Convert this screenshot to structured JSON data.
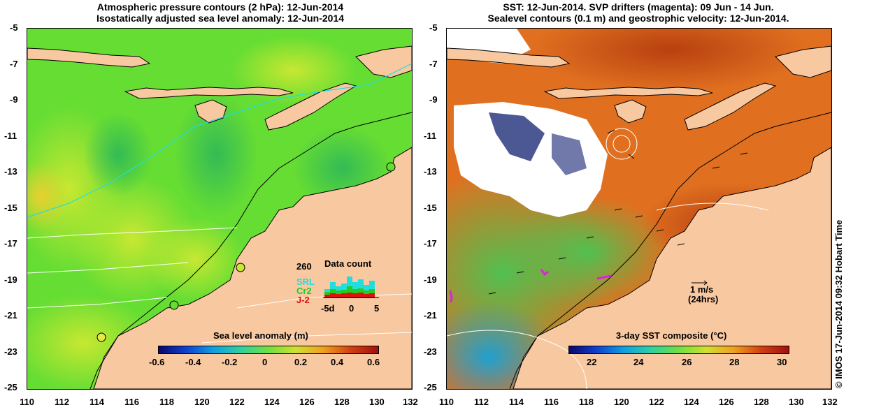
{
  "left_panel": {
    "title_line1": "Atmospheric pressure contours (2 hPa): 12-Jun-2014",
    "title_line2": "Isostatically adjusted sea level anomaly: 12-Jun-2014",
    "colorbar_title": "Sea level anomaly (m)",
    "colorbar_ticks": [
      "-0.6",
      "-0.4",
      "-0.2",
      "0",
      "0.2",
      "0.4",
      "0.6"
    ],
    "data_count": {
      "title": "Data count",
      "max_label": "260",
      "series": [
        {
          "name": "SRL",
          "color": "#22dddd"
        },
        {
          "name": "Cr2",
          "color": "#22cc22"
        },
        {
          "name": "J-2",
          "color": "#dd1111"
        }
      ],
      "xticks": [
        "-5d",
        "0",
        "5"
      ]
    }
  },
  "right_panel": {
    "title_line1": "SST: 12-Jun-2014. SVP drifters (magenta): 09 Jun - 14 Jun.",
    "title_line2": "Sealevel contours (0.1 m) and geostrophic velocity: 12-Jun-2014.",
    "colorbar_title": "3-day SST composite (°C)",
    "colorbar_ticks": [
      "22",
      "24",
      "26",
      "28",
      "30"
    ],
    "vector_scale_line1": "1 m/s",
    "vector_scale_line2": "(24hrs)"
  },
  "axes": {
    "x_ticks": [
      "110",
      "112",
      "114",
      "116",
      "118",
      "120",
      "122",
      "124",
      "126",
      "128",
      "130",
      "132"
    ],
    "y_ticks": [
      "-5",
      "-7",
      "-9",
      "-11",
      "-13",
      "-15",
      "-17",
      "-19",
      "-21",
      "-23",
      "-25"
    ]
  },
  "credit": "© IMOS 17-Jun-2014 09:32 Hobart Time",
  "colors": {
    "land": "#f8c8a0",
    "sla_bg": "#66dd33",
    "sst_bg": "#e07020"
  }
}
